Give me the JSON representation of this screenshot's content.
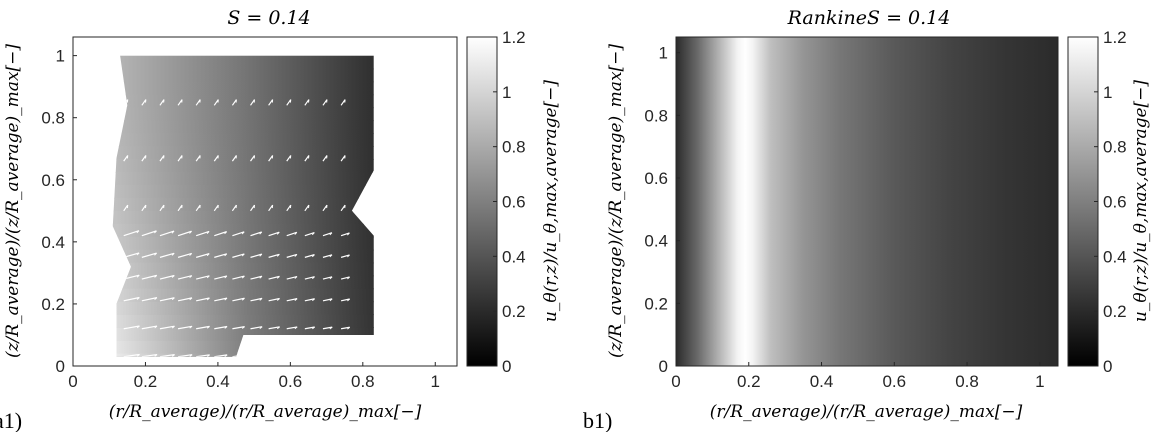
{
  "chart_data": [
    {
      "type": "heatmap",
      "panel_label": "a1)",
      "title": "S = 0.14",
      "xlabel": "(r/R_average)/(r/R_average)_max[−]",
      "ylabel": "(z/R_average)/(z/R_average)_max[−]",
      "colorbar_label": "u_θ(r,z)/u_θ,max,average[−]",
      "xlim": [
        0,
        1.06
      ],
      "ylim": [
        0,
        1.06
      ],
      "x_ticks": [
        "0",
        "0.2",
        "0.4",
        "0.6",
        "0.8",
        "1"
      ],
      "y_ticks": [
        "0",
        "0.2",
        "0.4",
        "0.6",
        "0.8",
        "1"
      ],
      "colorbar_range": [
        0,
        1.2
      ],
      "colorbar_ticks": [
        "0",
        "0.2",
        "0.4",
        "0.6",
        "0.8",
        "1",
        "1.2"
      ],
      "colormap": "gray",
      "domain_outline": [
        [
          0.13,
          1.0
        ],
        [
          0.83,
          1.0
        ],
        [
          0.83,
          0.63
        ],
        [
          0.77,
          0.5
        ],
        [
          0.83,
          0.42
        ],
        [
          0.83,
          0.1
        ],
        [
          0.47,
          0.1
        ],
        [
          0.45,
          0.03
        ],
        [
          0.12,
          0.03
        ],
        [
          0.12,
          0.2
        ],
        [
          0.16,
          0.32
        ],
        [
          0.11,
          0.45
        ],
        [
          0.12,
          0.67
        ],
        [
          0.15,
          0.84
        ],
        [
          0.13,
          1.0
        ]
      ],
      "field_samples": [
        {
          "x": 0.15,
          "y": 1.0,
          "u": 0.85
        },
        {
          "x": 0.5,
          "y": 1.0,
          "u": 0.55
        },
        {
          "x": 0.82,
          "y": 1.0,
          "u": 0.22
        },
        {
          "x": 0.15,
          "y": 0.5,
          "u": 0.7
        },
        {
          "x": 0.5,
          "y": 0.5,
          "u": 0.42
        },
        {
          "x": 0.82,
          "y": 0.5,
          "u": 0.18
        },
        {
          "x": 0.15,
          "y": 0.05,
          "u": 1.1
        },
        {
          "x": 0.45,
          "y": 0.05,
          "u": 0.6
        },
        {
          "x": 0.82,
          "y": 0.1,
          "u": 0.25
        }
      ],
      "vector_rows": [
        0.03,
        0.12,
        0.21,
        0.28,
        0.35,
        0.42,
        0.5,
        0.66,
        0.84
      ],
      "vector_columns": [
        0.14,
        0.19,
        0.24,
        0.29,
        0.34,
        0.39,
        0.44,
        0.49,
        0.54,
        0.59,
        0.64,
        0.69,
        0.74
      ]
    },
    {
      "type": "heatmap",
      "panel_label": "b1)",
      "title": "RankineS = 0.14",
      "xlabel": "(r/R_average)/(r/R_average)_max[−]",
      "ylabel": "(z/R_average)/(z/R_average)_max[−]",
      "colorbar_label": "u_θ(r,z)/u_θ,max,average[−]",
      "xlim": [
        0,
        1.05
      ],
      "ylim": [
        0,
        1.05
      ],
      "x_ticks": [
        "0",
        "0.2",
        "0.4",
        "0.6",
        "0.8",
        "1"
      ],
      "y_ticks": [
        "0",
        "0.2",
        "0.4",
        "0.6",
        "0.8",
        "1"
      ],
      "colorbar_range": [
        0,
        1.2
      ],
      "colorbar_ticks": [
        "0",
        "0.2",
        "0.4",
        "0.6",
        "0.8",
        "1",
        "1.2"
      ],
      "colormap": "gray",
      "profile_r": [
        0.0,
        0.06,
        0.12,
        0.17,
        0.19,
        0.21,
        0.26,
        0.35,
        0.45,
        0.6,
        0.75,
        0.9,
        1.05
      ],
      "profile_u": [
        0.2,
        0.5,
        0.85,
        1.15,
        1.2,
        1.15,
        0.9,
        0.7,
        0.56,
        0.42,
        0.32,
        0.25,
        0.2
      ]
    }
  ]
}
